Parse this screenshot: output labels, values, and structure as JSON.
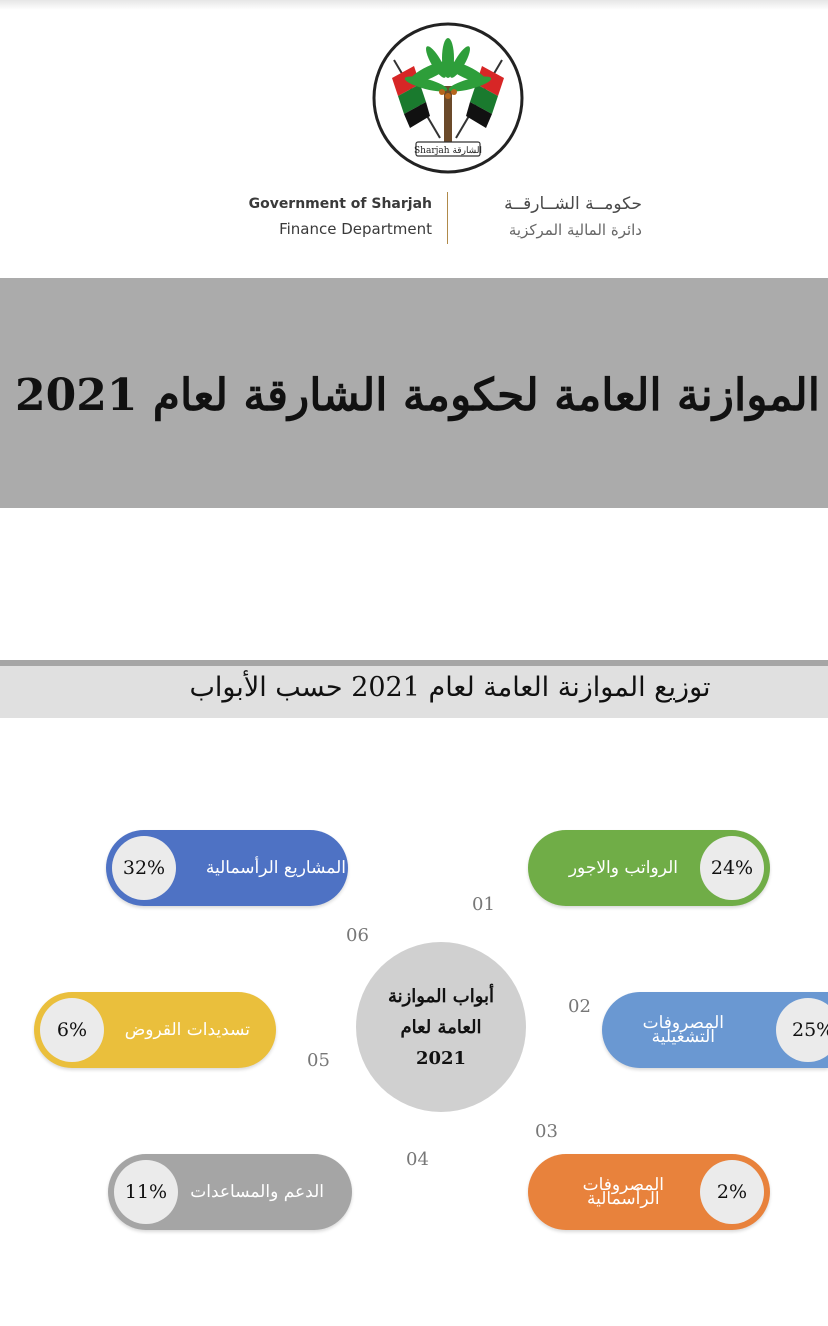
{
  "header": {
    "emblem_caption": "Sharjah الشارقة",
    "logo_en_line1": "Government of Sharjah",
    "logo_en_line2": "Finance Department",
    "logo_ar_line1": "حكومــة الشــارقــة",
    "logo_ar_line2": "دائرة المالية المركزية"
  },
  "banner": {
    "title": "الموازنة العامة لحكومة الشارقة لعام 2021"
  },
  "section": {
    "title": "توزيع الموازنة العامة لعام 2021 حسب الأبواب"
  },
  "center": {
    "line1": "أبواب الموازنة",
    "line2": "العامة لعام",
    "line3": "2021"
  },
  "chapters": [
    {
      "number": "01",
      "label": "الرواتب والاجور",
      "percent": "24%",
      "color": "#70ad47"
    },
    {
      "number": "02",
      "label_line1": "المصروفات",
      "label_line2": "التشغيلية",
      "percent": "25%",
      "color": "#6a98d2"
    },
    {
      "number": "03",
      "label_line1": "المصروفات",
      "label_line2": "الرأسمالية",
      "percent": "2%",
      "color": "#e8823c"
    },
    {
      "number": "04",
      "label": "الدعم والمساعدات",
      "percent": "11%",
      "color": "#a5a5a5"
    },
    {
      "number": "05",
      "label": "تسديدات القروض",
      "percent": "6%",
      "color": "#eabf3c"
    },
    {
      "number": "06",
      "label": "المشاريع الرأسمالية",
      "percent": "32%",
      "color": "#4e72c4"
    }
  ]
}
